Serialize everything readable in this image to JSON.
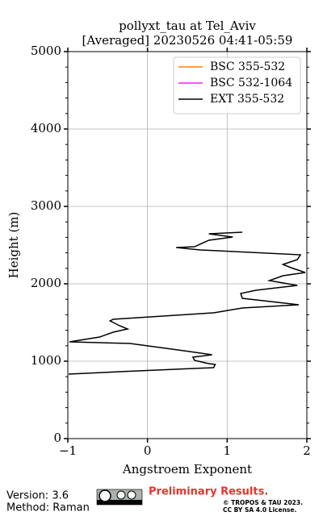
{
  "chart_data": {
    "type": "profile",
    "title": "pollyxt_tau at Tel_Aviv",
    "subtitle": "[Averaged] 20230526 04:41-05:59",
    "xlabel": "Angstroem Exponent",
    "ylabel": "Height (m)",
    "xlim": [
      -1,
      2
    ],
    "xticks": [
      {
        "value": -1,
        "label": "−1"
      },
      0,
      1,
      2
    ],
    "ylim": [
      0,
      5000
    ],
    "yticks": [
      0,
      1000,
      2000,
      3000,
      4000,
      5000
    ],
    "yminorticks": [
      200,
      400,
      600,
      800,
      1200,
      1400,
      1600,
      1800,
      2200,
      2400,
      2600,
      2800,
      3200,
      3400,
      3600,
      3800,
      4200,
      4400,
      4600,
      4800
    ],
    "grid": true,
    "legend": "upper right",
    "heights": [
      833,
      854,
      865,
      917,
      958,
      969,
      1010,
      1052,
      1083,
      1146,
      1229,
      1250,
      1313,
      1375,
      1417,
      1458,
      1521,
      1542,
      1563,
      1625,
      1688,
      1729,
      1813,
      1875,
      1917,
      1979,
      2042,
      2104,
      2146,
      2208,
      2250,
      2313,
      2375,
      2438,
      2469,
      2479,
      2563,
      2604,
      2646,
      2667
    ],
    "series": [
      {
        "name": "BSC 355-532",
        "color": "#ff7f0e",
        "values": [
          null,
          null,
          null,
          null,
          null,
          null,
          null,
          null,
          null,
          null,
          null,
          null,
          null,
          null,
          null,
          null,
          null,
          null,
          null,
          null,
          null,
          null,
          null,
          null,
          null,
          null,
          null,
          null,
          null,
          null,
          null,
          null,
          null,
          null,
          null,
          null,
          null,
          null,
          null,
          null
        ]
      },
      {
        "name": "BSC 532-1064",
        "color": "#ff1cf0",
        "values": [
          null,
          null,
          null,
          null,
          null,
          null,
          null,
          null,
          null,
          null,
          null,
          null,
          null,
          null,
          null,
          null,
          null,
          null,
          null,
          null,
          null,
          null,
          null,
          null,
          null,
          null,
          null,
          null,
          null,
          null,
          null,
          null,
          null,
          null,
          null,
          null,
          null,
          null,
          null,
          null
        ]
      },
      {
        "name": "EXT 355-532",
        "color": "#000000",
        "values": [
          -0.99,
          -0.55,
          -0.35,
          0.83,
          0.85,
          0.77,
          0.59,
          0.57,
          0.81,
          0.38,
          -0.22,
          -0.98,
          -0.6,
          -0.43,
          -0.25,
          -0.35,
          -0.47,
          -0.43,
          -0.12,
          0.83,
          1.19,
          1.9,
          1.19,
          1.17,
          1.36,
          1.88,
          1.53,
          1.7,
          1.98,
          1.8,
          1.7,
          1.88,
          1.92,
          0.66,
          0.36,
          0.59,
          0.77,
          1.07,
          0.77,
          1.19
        ]
      }
    ],
    "footer": {
      "version": "Version: 3.6",
      "method": "Method: Raman",
      "preliminary": "Preliminary Results.",
      "copyright": "© TROPOS & TAU 2023.",
      "license": "CC BY SA 4.0 License."
    }
  }
}
